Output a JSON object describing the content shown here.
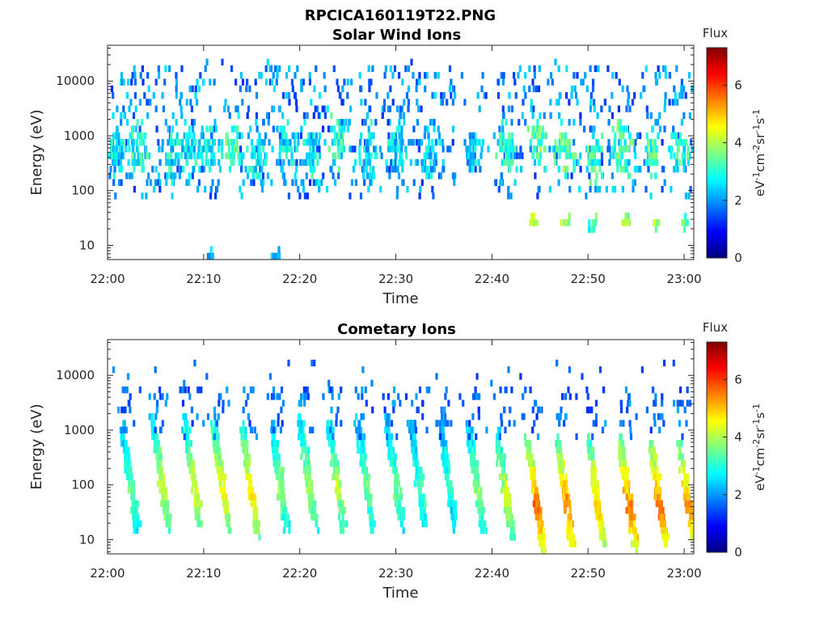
{
  "figure_title": "RPCICA160119T22.PNG",
  "colors": {
    "colormap": [
      "#000080",
      "#0000ff",
      "#0080ff",
      "#00ffff",
      "#80ff80",
      "#ffff00",
      "#ff8000",
      "#ff0000",
      "#800000"
    ],
    "axis": "#262626"
  },
  "chart_data": [
    {
      "type": "heatmap",
      "title": "Solar Wind Ions",
      "xlabel": "Time",
      "ylabel": "Energy (eV)",
      "x_ticks": [
        "22:00",
        "22:10",
        "22:20",
        "22:30",
        "22:40",
        "22:50",
        "23:00"
      ],
      "y_ticks": [
        "10",
        "100",
        "1000",
        "10000"
      ],
      "x_range_minutes": [
        0,
        61
      ],
      "y_scale": "log",
      "ylim": [
        5.5,
        45000
      ],
      "colorbar": {
        "title": "Flux",
        "label_parts": [
          "eV",
          "-1",
          "cm",
          "-2",
          "sr",
          "-1",
          "s",
          "-1"
        ],
        "ticks": [
          "0",
          "2",
          "4",
          "6"
        ],
        "range": [
          0,
          7.3
        ]
      },
      "data_summary": "Sparse scatter of mostly blue/cyan flux (~1-3) from 100 eV to 20000 eV, with greener bands at 200-1000 eV and isolated yellow-orange spots near 20-30 eV after 22:43",
      "events": [
        {
          "t": 0.8,
          "e_center": 500,
          "intensity": 2.6
        },
        {
          "t": 3.0,
          "e_center": 600,
          "intensity": 3.0
        },
        {
          "t": 6.5,
          "e_center": 400,
          "intensity": 2.8
        },
        {
          "t": 8.5,
          "e_center": 600,
          "intensity": 2.7
        },
        {
          "t": 10.5,
          "e_center": 500,
          "intensity": 2.9
        },
        {
          "t": 13.0,
          "e_center": 700,
          "intensity": 3.2
        },
        {
          "t": 15.5,
          "e_center": 400,
          "intensity": 2.8
        },
        {
          "t": 18.5,
          "e_center": 600,
          "intensity": 2.7
        },
        {
          "t": 21.0,
          "e_center": 500,
          "intensity": 2.8
        },
        {
          "t": 24.0,
          "e_center": 700,
          "intensity": 3.0
        },
        {
          "t": 27.0,
          "e_center": 500,
          "intensity": 2.7
        },
        {
          "t": 30.0,
          "e_center": 600,
          "intensity": 2.6
        },
        {
          "t": 33.5,
          "e_center": 500,
          "intensity": 2.6
        },
        {
          "t": 38.0,
          "e_center": 500,
          "intensity": 2.5
        },
        {
          "t": 41.5,
          "e_center": 600,
          "intensity": 3.0
        },
        {
          "t": 44.5,
          "e_center": 700,
          "intensity": 3.4
        },
        {
          "t": 47.5,
          "e_center": 500,
          "intensity": 3.3
        },
        {
          "t": 50.5,
          "e_center": 400,
          "intensity": 3.2
        },
        {
          "t": 53.5,
          "e_center": 600,
          "intensity": 3.3
        },
        {
          "t": 56.5,
          "e_center": 500,
          "intensity": 3.2
        },
        {
          "t": 59.5,
          "e_center": 500,
          "intensity": 3.1
        }
      ],
      "low_energy_spots": [
        {
          "t": 44.2,
          "e": 25,
          "intensity": 4.8
        },
        {
          "t": 47.5,
          "e": 25,
          "intensity": 4.3
        },
        {
          "t": 50.5,
          "e": 28,
          "intensity": 3.8
        },
        {
          "t": 53.8,
          "e": 25,
          "intensity": 4.4
        },
        {
          "t": 57.0,
          "e": 25,
          "intensity": 4.6
        },
        {
          "t": 60.0,
          "e": 28,
          "intensity": 3.9
        },
        {
          "t": 17.5,
          "e": 7,
          "intensity": 3.0
        },
        {
          "t": 10.5,
          "e": 7,
          "intensity": 3.0
        }
      ]
    },
    {
      "type": "heatmap",
      "title": "Cometary Ions",
      "xlabel": "Time",
      "ylabel": "Energy (eV)",
      "x_ticks": [
        "22:00",
        "22:10",
        "22:20",
        "22:30",
        "22:40",
        "22:50",
        "23:00"
      ],
      "y_ticks": [
        "10",
        "100",
        "1000",
        "10000"
      ],
      "x_range_minutes": [
        0,
        61
      ],
      "y_scale": "log",
      "ylim": [
        5.5,
        45000
      ],
      "colorbar": {
        "title": "Flux",
        "label_parts": [
          "eV",
          "-1",
          "cm",
          "-2",
          "sr",
          "-1",
          "s",
          "-1"
        ],
        "ticks": [
          "0",
          "2",
          "4",
          "6"
        ],
        "range": [
          0,
          7.3
        ]
      },
      "data_summary": "Periodic dispersed stripes every ~3 min, energy falling from ~1000 eV to ~20 eV; strongest orange/red flux (~5-6) at 20-40 eV after 22:43",
      "events": [
        {
          "t": 2.0,
          "e_center": 80,
          "intensity": 3.5
        },
        {
          "t": 5.2,
          "e_center": 90,
          "intensity": 4.2
        },
        {
          "t": 8.5,
          "e_center": 90,
          "intensity": 4.3
        },
        {
          "t": 11.5,
          "e_center": 80,
          "intensity": 4.6
        },
        {
          "t": 14.5,
          "e_center": 70,
          "intensity": 4.7
        },
        {
          "t": 17.5,
          "e_center": 90,
          "intensity": 3.8
        },
        {
          "t": 20.5,
          "e_center": 90,
          "intensity": 4.0
        },
        {
          "t": 23.5,
          "e_center": 80,
          "intensity": 4.1
        },
        {
          "t": 26.5,
          "e_center": 90,
          "intensity": 3.6
        },
        {
          "t": 29.5,
          "e_center": 100,
          "intensity": 3.5
        },
        {
          "t": 32.0,
          "e_center": 90,
          "intensity": 3.3
        },
        {
          "t": 35.0,
          "e_center": 100,
          "intensity": 3.2
        },
        {
          "t": 38.0,
          "e_center": 80,
          "intensity": 3.8
        },
        {
          "t": 41.0,
          "e_center": 60,
          "intensity": 4.2
        },
        {
          "t": 44.2,
          "e_center": 40,
          "intensity": 5.6
        },
        {
          "t": 47.3,
          "e_center": 40,
          "intensity": 5.5
        },
        {
          "t": 50.5,
          "e_center": 45,
          "intensity": 5.0
        },
        {
          "t": 53.8,
          "e_center": 40,
          "intensity": 5.6
        },
        {
          "t": 57.0,
          "e_center": 40,
          "intensity": 5.6
        },
        {
          "t": 60.0,
          "e_center": 40,
          "intensity": 5.4
        }
      ]
    }
  ]
}
